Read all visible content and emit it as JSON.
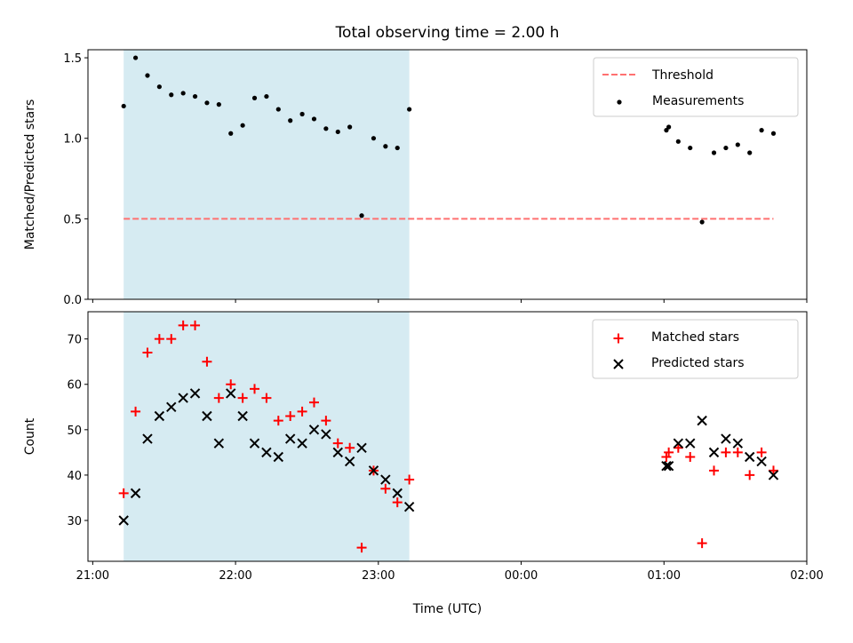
{
  "chart_data": {
    "title": "Total observing time = 2.00 h",
    "x_axis": {
      "label": "Time (UTC)",
      "unit": "minutes after 21:00 UTC",
      "range": [
        -2,
        300
      ],
      "ticks": [
        0,
        60,
        120,
        180,
        240,
        300
      ],
      "tick_labels": [
        "21:00",
        "22:00",
        "23:00",
        "00:00",
        "01:00",
        "02:00"
      ]
    },
    "observing_window": {
      "start": 13,
      "end": 133,
      "color": "#add8e6"
    },
    "panels": [
      {
        "type": "scatter",
        "ylabel": "Matched/Predicted stars",
        "ylim": [
          0,
          1.55
        ],
        "yticks": [
          0.0,
          0.5,
          1.0,
          1.5
        ],
        "ytick_labels": [
          "0.0",
          "0.5",
          "1.0",
          "1.5"
        ],
        "legend": {
          "placement": "top-right",
          "entries": [
            "Threshold",
            "Measurements"
          ]
        },
        "series": [
          {
            "name": "Threshold",
            "kind": "dashed-line",
            "color": "#ff7070",
            "x": [
              13,
              286
            ],
            "y": [
              0.5,
              0.5
            ]
          },
          {
            "name": "Measurements",
            "kind": "dot",
            "color": "#000000",
            "x": [
              13,
              18,
              23,
              28,
              33,
              38,
              43,
              48,
              53,
              58,
              63,
              68,
              73,
              78,
              83,
              88,
              93,
              98,
              103,
              108,
              113,
              118,
              123,
              128,
              133,
              241,
              242,
              246,
              251,
              256,
              261,
              266,
              271,
              276,
              281,
              286
            ],
            "y": [
              1.2,
              1.5,
              1.39,
              1.32,
              1.27,
              1.28,
              1.26,
              1.22,
              1.21,
              1.03,
              1.08,
              1.25,
              1.26,
              1.18,
              1.11,
              1.15,
              1.12,
              1.06,
              1.04,
              1.07,
              0.52,
              1.0,
              0.95,
              0.94,
              1.18,
              1.05,
              1.07,
              0.98,
              0.94,
              0.48,
              0.91,
              0.94,
              0.96,
              0.91,
              1.05,
              1.03
            ]
          }
        ]
      },
      {
        "type": "scatter",
        "ylabel": "Count",
        "ylim": [
          21,
          76
        ],
        "yticks": [
          30,
          40,
          50,
          60,
          70
        ],
        "ytick_labels": [
          "30",
          "40",
          "50",
          "60",
          "70"
        ],
        "legend": {
          "placement": "top-right",
          "entries": [
            "Matched stars",
            "Predicted stars"
          ]
        },
        "series": [
          {
            "name": "Matched stars",
            "kind": "plus",
            "color": "#ff0000",
            "x": [
              13,
              18,
              23,
              28,
              33,
              38,
              43,
              48,
              53,
              58,
              63,
              68,
              73,
              78,
              83,
              88,
              93,
              98,
              103,
              108,
              113,
              118,
              123,
              128,
              133,
              241,
              242,
              246,
              251,
              256,
              261,
              266,
              271,
              276,
              281,
              286
            ],
            "y": [
              36,
              54,
              67,
              70,
              70,
              73,
              73,
              65,
              57,
              60,
              57,
              59,
              57,
              52,
              53,
              54,
              56,
              52,
              47,
              46,
              24,
              41,
              37,
              34,
              39,
              44,
              45,
              46,
              44,
              25,
              41,
              45,
              45,
              40,
              45,
              41
            ]
          },
          {
            "name": "Predicted stars",
            "kind": "x",
            "color": "#000000",
            "x": [
              13,
              18,
              23,
              28,
              33,
              38,
              43,
              48,
              53,
              58,
              63,
              68,
              73,
              78,
              83,
              88,
              93,
              98,
              103,
              108,
              113,
              118,
              123,
              128,
              133,
              241,
              242,
              246,
              251,
              256,
              261,
              266,
              271,
              276,
              281,
              286
            ],
            "y": [
              30,
              36,
              48,
              53,
              55,
              57,
              58,
              53,
              47,
              58,
              53,
              47,
              45,
              44,
              48,
              47,
              50,
              49,
              45,
              43,
              46,
              41,
              39,
              36,
              33,
              42,
              42,
              47,
              47,
              52,
              45,
              48,
              47,
              44,
              43,
              40
            ]
          }
        ]
      }
    ]
  }
}
